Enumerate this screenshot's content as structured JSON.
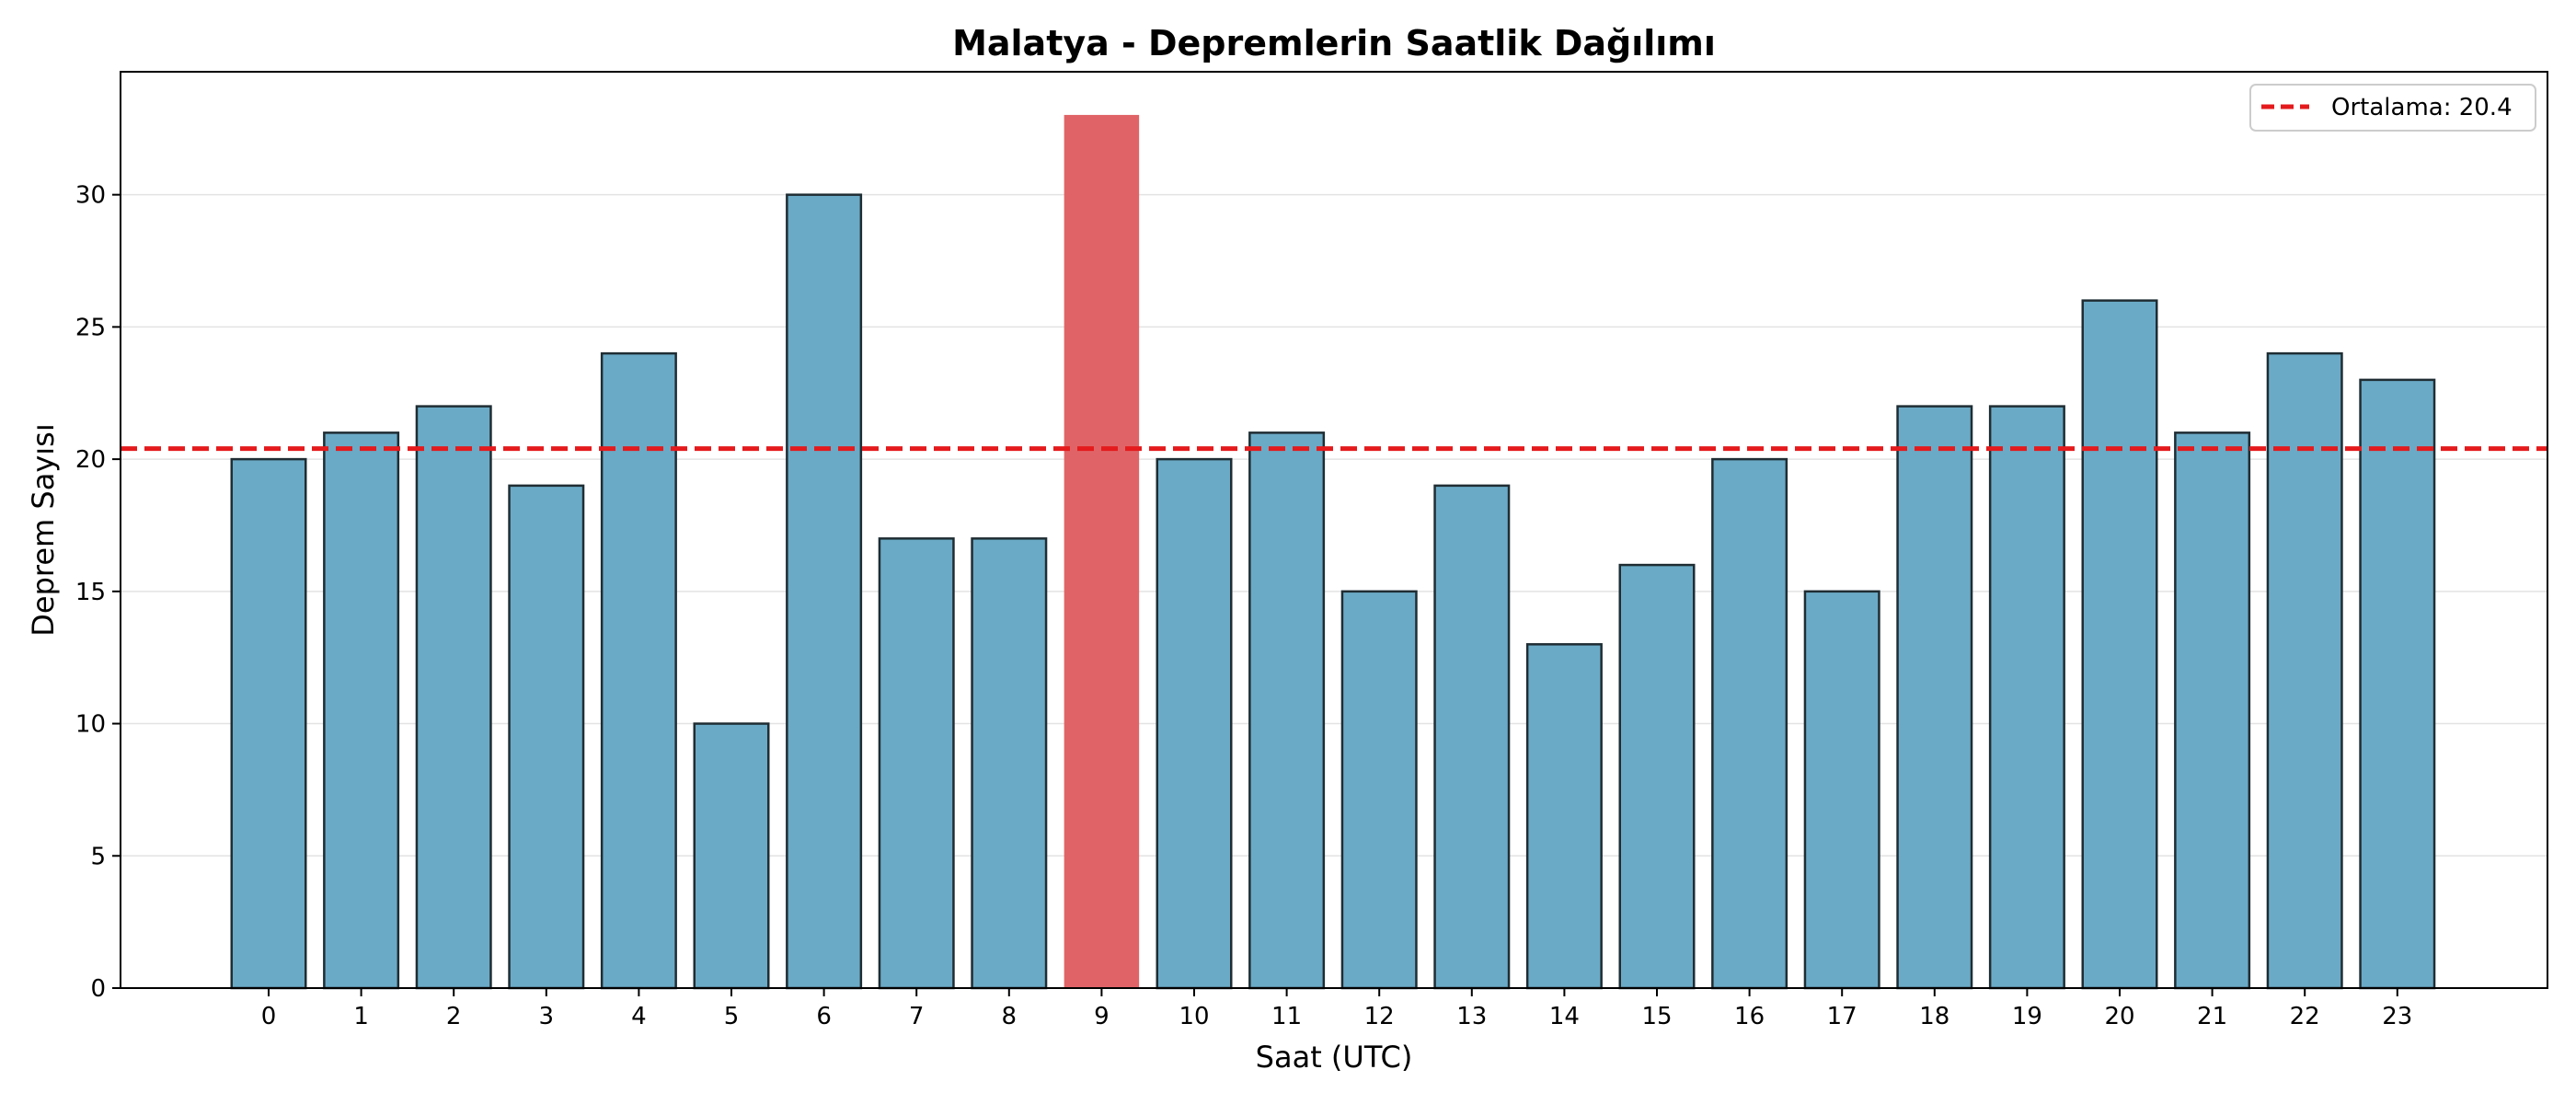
{
  "chart_data": {
    "type": "bar",
    "title": "Malatya - Depremlerin Saatlik Dağılımı",
    "xlabel": "Saat (UTC)",
    "ylabel": "Deprem Sayısı",
    "categories": [
      "0",
      "1",
      "2",
      "3",
      "4",
      "5",
      "6",
      "7",
      "8",
      "9",
      "10",
      "11",
      "12",
      "13",
      "14",
      "15",
      "16",
      "17",
      "18",
      "19",
      "20",
      "21",
      "22",
      "23"
    ],
    "values": [
      20,
      21,
      22,
      19,
      24,
      10,
      30,
      17,
      17,
      33,
      20,
      21,
      15,
      19,
      13,
      16,
      20,
      15,
      22,
      22,
      26,
      21,
      24,
      23
    ],
    "highlight_index": 9,
    "ylim": [
      0,
      34.65
    ],
    "yticks": [
      0,
      5,
      10,
      15,
      20,
      25,
      30
    ],
    "grid": "horizontal",
    "reference_line": {
      "label": "Ortalama: 20.4",
      "value": 20.4,
      "color": "#e41a1c"
    },
    "legend": {
      "position": "top-right",
      "label": "Ortalama: 20.4"
    },
    "colors": {
      "bar": "#6aaac6",
      "highlight": "#e06467",
      "bar_edge": "#1f2d33",
      "mean_line": "#e41a1c"
    }
  }
}
